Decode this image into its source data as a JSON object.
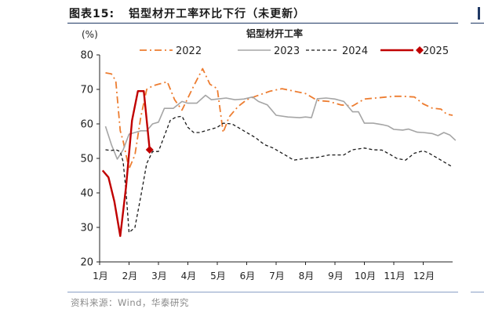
{
  "figure_label": "图表15:",
  "figure_title": "铝型材开工率环比下行（未更新）",
  "source_text": "资料来源：Wind，华泰研究",
  "chart_data": {
    "type": "line",
    "title": "铝型材开工率",
    "ylabel": "(%)",
    "xlabel": "",
    "ylim": [
      20,
      80
    ],
    "yticks": [
      20,
      30,
      40,
      50,
      60,
      70,
      80
    ],
    "x_domain": [
      1,
      13
    ],
    "xticks": [
      {
        "x": 1,
        "label": "1月"
      },
      {
        "x": 2,
        "label": "2月"
      },
      {
        "x": 3,
        "label": "3月"
      },
      {
        "x": 4,
        "label": "4月"
      },
      {
        "x": 5,
        "label": "5月"
      },
      {
        "x": 6,
        "label": "6月"
      },
      {
        "x": 7,
        "label": "7月"
      },
      {
        "x": 8,
        "label": "8月"
      },
      {
        "x": 9,
        "label": "9月"
      },
      {
        "x": 10,
        "label": "10月"
      },
      {
        "x": 11,
        "label": "11月"
      },
      {
        "x": 12,
        "label": "12月"
      }
    ],
    "legend_position": "top",
    "grid": false,
    "series": [
      {
        "name": "2022",
        "color": "#ED7D31",
        "style": "dashdot",
        "points": [
          [
            1.2,
            74.8
          ],
          [
            1.4,
            74.5
          ],
          [
            1.55,
            72.5
          ],
          [
            1.7,
            58
          ],
          [
            1.8,
            55
          ],
          [
            2.0,
            47
          ],
          [
            2.2,
            51
          ],
          [
            2.4,
            62
          ],
          [
            2.6,
            70
          ],
          [
            2.8,
            71
          ],
          [
            3.0,
            71.5
          ],
          [
            3.3,
            72.2
          ],
          [
            3.55,
            67
          ],
          [
            3.8,
            64
          ],
          [
            4.2,
            71
          ],
          [
            4.5,
            76
          ],
          [
            4.75,
            71.5
          ],
          [
            5.0,
            70.2
          ],
          [
            5.2,
            57.5
          ],
          [
            5.4,
            62
          ],
          [
            5.7,
            65
          ],
          [
            6.0,
            67
          ],
          [
            6.3,
            68
          ],
          [
            6.8,
            69.5
          ],
          [
            7.2,
            70.2
          ],
          [
            7.6,
            69.5
          ],
          [
            8.0,
            68.8
          ],
          [
            8.4,
            66.8
          ],
          [
            8.8,
            66.5
          ],
          [
            9.2,
            65.5
          ],
          [
            9.6,
            65.2
          ],
          [
            10.0,
            67.2
          ],
          [
            10.5,
            67.6
          ],
          [
            11.0,
            68
          ],
          [
            11.3,
            68
          ],
          [
            11.7,
            67.8
          ],
          [
            12.0,
            65.8
          ],
          [
            12.3,
            64.6
          ],
          [
            12.6,
            64.3
          ],
          [
            12.8,
            62.8
          ],
          [
            13.0,
            62.5
          ]
        ]
      },
      {
        "name": "2023",
        "color": "#A5A5A5",
        "style": "solid",
        "points": [
          [
            1.2,
            59.3
          ],
          [
            1.4,
            54
          ],
          [
            1.6,
            49.8
          ],
          [
            1.8,
            52.5
          ],
          [
            2.0,
            57
          ],
          [
            2.2,
            57.5
          ],
          [
            2.4,
            58
          ],
          [
            2.6,
            58
          ],
          [
            2.8,
            60
          ],
          [
            3.0,
            60.5
          ],
          [
            3.2,
            64.5
          ],
          [
            3.5,
            64.5
          ],
          [
            3.8,
            66.5
          ],
          [
            4.0,
            66
          ],
          [
            4.3,
            66
          ],
          [
            4.6,
            68.3
          ],
          [
            4.8,
            67
          ],
          [
            5.0,
            67.2
          ],
          [
            5.3,
            67.5
          ],
          [
            5.6,
            67
          ],
          [
            5.9,
            67.2
          ],
          [
            6.2,
            67.8
          ],
          [
            6.4,
            66.5
          ],
          [
            6.7,
            65.5
          ],
          [
            7.0,
            62.5
          ],
          [
            7.4,
            62
          ],
          [
            7.8,
            61.8
          ],
          [
            8.0,
            62
          ],
          [
            8.2,
            61.8
          ],
          [
            8.4,
            67.3
          ],
          [
            8.7,
            67.5
          ],
          [
            9.0,
            67.2
          ],
          [
            9.3,
            66.5
          ],
          [
            9.6,
            63.5
          ],
          [
            9.8,
            63.5
          ],
          [
            10.0,
            60.2
          ],
          [
            10.3,
            60.2
          ],
          [
            10.6,
            59.8
          ],
          [
            10.8,
            59.4
          ],
          [
            11.0,
            58.4
          ],
          [
            11.3,
            58.2
          ],
          [
            11.5,
            58.5
          ],
          [
            11.8,
            57.6
          ],
          [
            12.0,
            57.5
          ],
          [
            12.3,
            57.2
          ],
          [
            12.5,
            56.6
          ],
          [
            12.7,
            57.5
          ],
          [
            12.9,
            56.8
          ],
          [
            13.1,
            55.2
          ]
        ]
      },
      {
        "name": "2024",
        "color": "#1a1a1a",
        "style": "dashed",
        "points": [
          [
            1.2,
            52.5
          ],
          [
            1.4,
            52.3
          ],
          [
            1.55,
            52.5
          ],
          [
            1.7,
            52.0
          ],
          [
            1.8,
            49
          ],
          [
            1.9,
            40
          ],
          [
            2.0,
            28.5
          ],
          [
            2.2,
            30
          ],
          [
            2.4,
            39
          ],
          [
            2.6,
            48.5
          ],
          [
            2.8,
            52
          ],
          [
            3.0,
            52
          ],
          [
            3.2,
            56.5
          ],
          [
            3.4,
            61
          ],
          [
            3.6,
            62
          ],
          [
            3.8,
            62.2
          ],
          [
            4.0,
            59
          ],
          [
            4.2,
            57.5
          ],
          [
            4.4,
            57.5
          ],
          [
            4.6,
            58
          ],
          [
            4.8,
            58.5
          ],
          [
            5.0,
            59
          ],
          [
            5.2,
            60.2
          ],
          [
            5.5,
            60
          ],
          [
            5.8,
            58.5
          ],
          [
            6.0,
            57.5
          ],
          [
            6.3,
            56
          ],
          [
            6.6,
            54
          ],
          [
            6.9,
            53
          ],
          [
            7.1,
            52
          ],
          [
            7.3,
            51
          ],
          [
            7.6,
            49.5
          ],
          [
            8.0,
            50
          ],
          [
            8.4,
            50.3
          ],
          [
            8.8,
            51
          ],
          [
            9.0,
            51
          ],
          [
            9.3,
            51
          ],
          [
            9.6,
            52.5
          ],
          [
            10.0,
            53
          ],
          [
            10.3,
            52.5
          ],
          [
            10.6,
            52.4
          ],
          [
            10.9,
            51
          ],
          [
            11.1,
            50
          ],
          [
            11.4,
            49.5
          ],
          [
            11.7,
            51.5
          ],
          [
            12.0,
            52.2
          ],
          [
            12.2,
            51.5
          ],
          [
            12.5,
            50
          ],
          [
            12.8,
            48.5
          ],
          [
            13.0,
            47.5
          ]
        ]
      },
      {
        "name": "2025",
        "color": "#C00000",
        "style": "solid",
        "end_marker": "diamond",
        "points": [
          [
            1.1,
            46.5
          ],
          [
            1.3,
            44.5
          ],
          [
            1.5,
            37.5
          ],
          [
            1.7,
            27.5
          ],
          [
            1.9,
            42
          ],
          [
            2.1,
            61
          ],
          [
            2.3,
            69.5
          ],
          [
            2.5,
            69.5
          ],
          [
            2.7,
            52.5
          ]
        ]
      }
    ]
  }
}
